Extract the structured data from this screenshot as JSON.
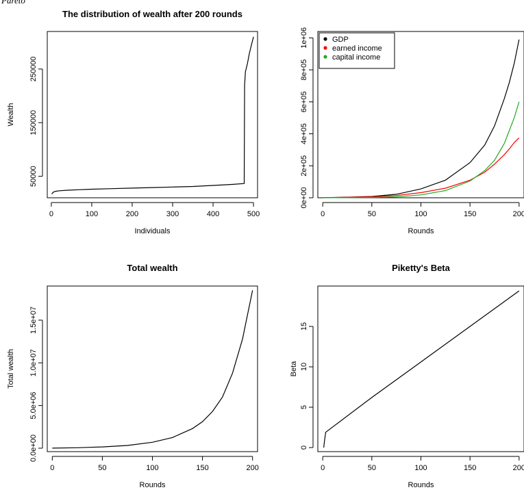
{
  "page": {
    "caption": "Pareto"
  },
  "chart_data": [
    {
      "id": "wealth-distribution",
      "type": "line",
      "title": "The distribution of wealth after 200 rounds",
      "xlabel": "Individuals",
      "ylabel": "Wealth",
      "xlim": [
        -10,
        510
      ],
      "ylim": [
        10000,
        320000
      ],
      "xticks": [
        0,
        100,
        200,
        300,
        400,
        500
      ],
      "xtick_labels": [
        "0",
        "100",
        "200",
        "300",
        "400",
        "500"
      ],
      "yticks": [
        50000,
        150000,
        250000
      ],
      "ytick_labels": [
        "50000",
        "150000",
        "250000"
      ],
      "series": [
        {
          "color": "#000000",
          "x": [
            1,
            5,
            10,
            20,
            40,
            70,
            100,
            150,
            200,
            250,
            300,
            350,
            400,
            450,
            477,
            478,
            480,
            485,
            490,
            495,
            500
          ],
          "y": [
            17000,
            20500,
            22000,
            23000,
            24000,
            25000,
            26000,
            27000,
            28000,
            29000,
            30000,
            31000,
            33000,
            35000,
            36500,
            220000,
            245000,
            260000,
            280000,
            295000,
            310000
          ]
        }
      ]
    },
    {
      "id": "gdp-income",
      "type": "line",
      "title": "",
      "xlabel": "Rounds",
      "ylabel": "",
      "xlim": [
        -5,
        205
      ],
      "ylim": [
        0,
        1040000
      ],
      "xticks": [
        0,
        50,
        100,
        150,
        200
      ],
      "xtick_labels": [
        "0",
        "50",
        "100",
        "150",
        "200"
      ],
      "yticks": [
        0,
        200000,
        400000,
        600000,
        800000,
        1000000
      ],
      "ytick_labels": [
        "0e+00",
        "2e+05",
        "4e+05",
        "6e+05",
        "8e+05",
        "1e+06"
      ],
      "legend": {
        "position": "top-left",
        "entries": [
          {
            "label": "GDP",
            "color": "#000000"
          },
          {
            "label": "earned income",
            "color": "#ff0000"
          },
          {
            "label": "capital income",
            "color": "#22aa22"
          }
        ]
      },
      "series": [
        {
          "name": "GDP",
          "color": "#000000",
          "x": [
            0,
            25,
            50,
            75,
            100,
            125,
            150,
            165,
            175,
            185,
            190,
            195,
            200
          ],
          "y": [
            1000,
            4000,
            8000,
            22000,
            55000,
            110000,
            220000,
            330000,
            450000,
            620000,
            720000,
            840000,
            990000
          ]
        },
        {
          "name": "earned income",
          "color": "#ff0000",
          "x": [
            0,
            25,
            50,
            75,
            100,
            125,
            150,
            165,
            175,
            185,
            190,
            195,
            200
          ],
          "y": [
            1000,
            3000,
            6000,
            14000,
            32000,
            60000,
            110000,
            160000,
            210000,
            270000,
            305000,
            345000,
            375000
          ]
        },
        {
          "name": "capital income",
          "color": "#22aa22",
          "x": [
            0,
            25,
            50,
            75,
            100,
            125,
            150,
            165,
            175,
            185,
            190,
            195,
            200
          ],
          "y": [
            0,
            1000,
            2000,
            6000,
            18000,
            45000,
            105000,
            170000,
            235000,
            340000,
            420000,
            500000,
            600000
          ]
        }
      ]
    },
    {
      "id": "total-wealth",
      "type": "line",
      "title": "Total wealth",
      "xlabel": "Rounds",
      "ylabel": "Total wealth",
      "xlim": [
        -5,
        205
      ],
      "ylim": [
        -400000,
        19000000
      ],
      "xticks": [
        0,
        50,
        100,
        150,
        200
      ],
      "xtick_labels": [
        "0",
        "50",
        "100",
        "150",
        "200"
      ],
      "yticks": [
        0,
        5000000,
        10000000,
        15000000
      ],
      "ytick_labels": [
        "0.0e+00",
        "5.0e+06",
        "1.0e+07",
        "1.5e+07"
      ],
      "series": [
        {
          "color": "#000000",
          "x": [
            0,
            25,
            50,
            75,
            100,
            120,
            140,
            150,
            160,
            170,
            180,
            190,
            200
          ],
          "y": [
            10000,
            60000,
            150000,
            320000,
            700000,
            1250000,
            2300000,
            3100000,
            4300000,
            6000000,
            8800000,
            12800000,
            18500000
          ]
        }
      ]
    },
    {
      "id": "piketty-beta",
      "type": "line",
      "title": "Piketty's Beta",
      "xlabel": "Rounds",
      "ylabel": "Beta",
      "xlim": [
        -5,
        205
      ],
      "ylim": [
        -0.5,
        20
      ],
      "xticks": [
        0,
        50,
        100,
        150,
        200
      ],
      "xtick_labels": [
        "0",
        "50",
        "100",
        "150",
        "200"
      ],
      "yticks": [
        0,
        5,
        10,
        15
      ],
      "ytick_labels": [
        "0",
        "5",
        "10",
        "15"
      ],
      "series": [
        {
          "color": "#000000",
          "x": [
            1,
            2,
            3,
            50,
            100,
            150,
            200
          ],
          "y": [
            0,
            1.0,
            1.9,
            6.2,
            10.6,
            15.0,
            19.4
          ]
        }
      ]
    }
  ]
}
